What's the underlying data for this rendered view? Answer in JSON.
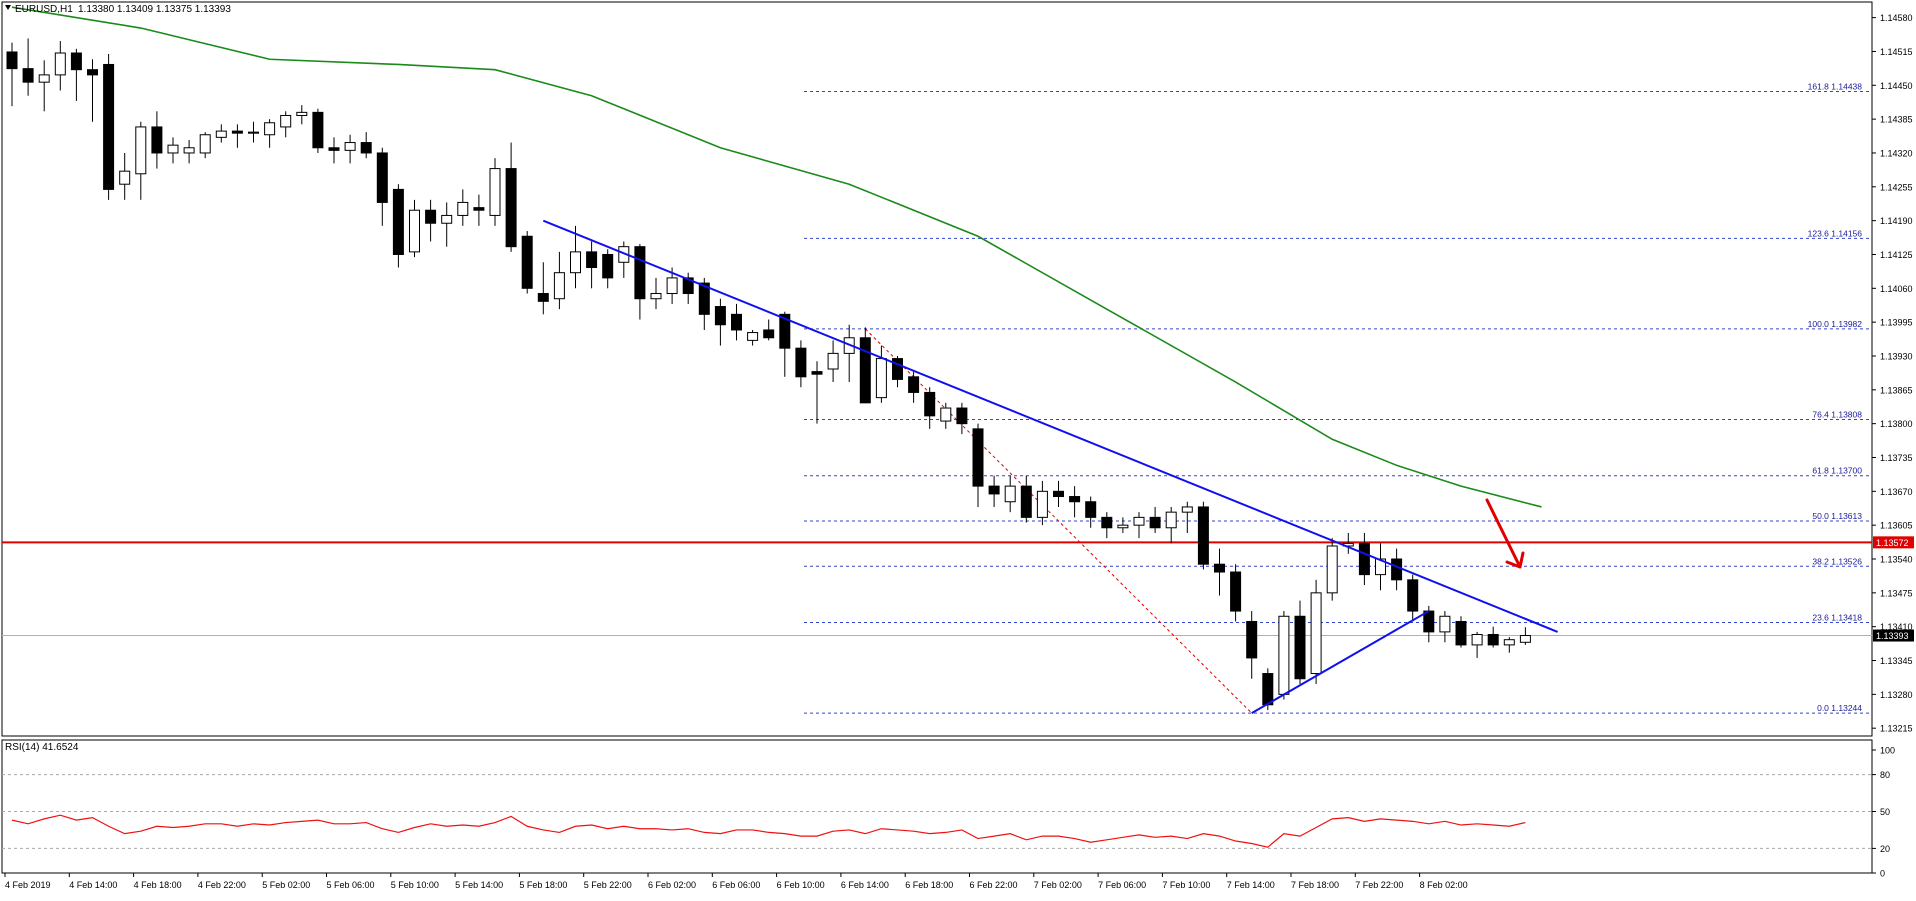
{
  "header": {
    "symbol": "EURUSD,H1",
    "ohlc": "1.13380 1.13409 1.13375 1.13393"
  },
  "rsi_header": "RSI(14) 41.6524",
  "colors": {
    "bull_fill": "#ffffff",
    "bear_fill": "#000000",
    "ma_line": "#1a8a1a",
    "trend_line": "#1010ee",
    "resistance_line": "#e00000",
    "fib_line": "#3344cc",
    "fib_text": "#1a1a99",
    "rsi_line": "#ee1111",
    "arrow": "#e00000"
  },
  "chart_data": [
    {
      "type": "candlestick",
      "title": "EURUSD,H1",
      "ylim": [
        1.132,
        1.1461
      ],
      "price_ticks": [
        "1.14580",
        "1.14515",
        "1.14450",
        "1.14385",
        "1.14320",
        "1.14255",
        "1.14190",
        "1.14125",
        "1.14060",
        "1.13995",
        "1.13930",
        "1.13865",
        "1.13800",
        "1.13735",
        "1.13670",
        "1.13605",
        "1.13540",
        "1.13475",
        "1.13410",
        "1.13345",
        "1.13280",
        "1.13215"
      ],
      "current_price": "1.13393",
      "resistance": {
        "value": 1.13572,
        "label": "1.13572"
      },
      "time_ticks": [
        "4 Feb 2019",
        "4 Feb 14:00",
        "4 Feb 18:00",
        "4 Feb 22:00",
        "5 Feb 02:00",
        "5 Feb 06:00",
        "5 Feb 10:00",
        "5 Feb 14:00",
        "5 Feb 18:00",
        "5 Feb 22:00",
        "6 Feb 02:00",
        "6 Feb 06:00",
        "6 Feb 10:00",
        "6 Feb 14:00",
        "6 Feb 18:00",
        "6 Feb 22:00",
        "7 Feb 02:00",
        "7 Feb 06:00",
        "7 Feb 10:00",
        "7 Feb 14:00",
        "7 Feb 18:00",
        "7 Feb 22:00",
        "8 Feb 02:00"
      ],
      "candles": [
        [
          1.14514,
          1.14532,
          1.1441,
          1.14482
        ],
        [
          1.14482,
          1.1454,
          1.1443,
          1.14456
        ],
        [
          1.14456,
          1.14498,
          1.144,
          1.1447
        ],
        [
          1.1447,
          1.14535,
          1.1444,
          1.14512
        ],
        [
          1.14512,
          1.1452,
          1.1442,
          1.1448
        ],
        [
          1.1448,
          1.145,
          1.1438,
          1.1447
        ],
        [
          1.1449,
          1.1451,
          1.1423,
          1.1425
        ],
        [
          1.1426,
          1.1432,
          1.1423,
          1.14285
        ],
        [
          1.1428,
          1.1438,
          1.1423,
          1.1437
        ],
        [
          1.1437,
          1.144,
          1.1429,
          1.1432
        ],
        [
          1.1432,
          1.1435,
          1.143,
          1.14335
        ],
        [
          1.1432,
          1.14345,
          1.143,
          1.1433
        ],
        [
          1.1432,
          1.1436,
          1.1431,
          1.14355
        ],
        [
          1.1435,
          1.14375,
          1.1434,
          1.14362
        ],
        [
          1.14362,
          1.14375,
          1.1433,
          1.14358
        ],
        [
          1.14358,
          1.1438,
          1.1434,
          1.1436
        ],
        [
          1.14355,
          1.14385,
          1.1433,
          1.14378
        ],
        [
          1.1437,
          1.144,
          1.1435,
          1.14392
        ],
        [
          1.14392,
          1.14412,
          1.14375,
          1.14398
        ],
        [
          1.14398,
          1.14405,
          1.1432,
          1.1433
        ],
        [
          1.1433,
          1.1435,
          1.143,
          1.14325
        ],
        [
          1.14325,
          1.14355,
          1.143,
          1.1434
        ],
        [
          1.1434,
          1.1436,
          1.1431,
          1.1432
        ],
        [
          1.1432,
          1.1433,
          1.1418,
          1.14225
        ],
        [
          1.1425,
          1.1426,
          1.141,
          1.14125
        ],
        [
          1.1413,
          1.1423,
          1.1412,
          1.1421
        ],
        [
          1.1421,
          1.1423,
          1.1415,
          1.14185
        ],
        [
          1.14185,
          1.14225,
          1.1414,
          1.142
        ],
        [
          1.142,
          1.1425,
          1.1418,
          1.14225
        ],
        [
          1.14215,
          1.1424,
          1.1418,
          1.1421
        ],
        [
          1.142,
          1.1431,
          1.1418,
          1.1429
        ],
        [
          1.1429,
          1.1434,
          1.1413,
          1.1414
        ],
        [
          1.1416,
          1.1417,
          1.1405,
          1.1406
        ],
        [
          1.1405,
          1.1411,
          1.1401,
          1.14035
        ],
        [
          1.1404,
          1.1413,
          1.1402,
          1.1409
        ],
        [
          1.1409,
          1.1418,
          1.1406,
          1.1413
        ],
        [
          1.1413,
          1.1415,
          1.1406,
          1.141
        ],
        [
          1.14125,
          1.14135,
          1.1406,
          1.1408
        ],
        [
          1.1411,
          1.1415,
          1.1408,
          1.1414
        ],
        [
          1.1414,
          1.14145,
          1.14,
          1.1404
        ],
        [
          1.1404,
          1.1408,
          1.1402,
          1.1405
        ],
        [
          1.1405,
          1.141,
          1.1403,
          1.1408
        ],
        [
          1.1408,
          1.1409,
          1.1403,
          1.1405
        ],
        [
          1.1407,
          1.1408,
          1.1398,
          1.1401
        ],
        [
          1.14025,
          1.1404,
          1.1395,
          1.1399
        ],
        [
          1.1401,
          1.1403,
          1.1396,
          1.1398
        ],
        [
          1.1396,
          1.1398,
          1.1395,
          1.13975
        ],
        [
          1.1398,
          1.14,
          1.1396,
          1.13965
        ],
        [
          1.1401,
          1.14015,
          1.1389,
          1.13945
        ],
        [
          1.13945,
          1.1396,
          1.1387,
          1.1389
        ],
        [
          1.139,
          1.1392,
          1.138,
          1.13895
        ],
        [
          1.13905,
          1.1396,
          1.1388,
          1.13935
        ],
        [
          1.13935,
          1.1399,
          1.1388,
          1.13965
        ],
        [
          1.13965,
          1.13985,
          1.1385,
          1.1384
        ],
        [
          1.1385,
          1.1395,
          1.1384,
          1.13925
        ],
        [
          1.13925,
          1.1393,
          1.1387,
          1.13885
        ],
        [
          1.1389,
          1.139,
          1.1384,
          1.1386
        ],
        [
          1.1386,
          1.1387,
          1.1379,
          1.13815
        ],
        [
          1.13805,
          1.1384,
          1.1379,
          1.1383
        ],
        [
          1.1383,
          1.1384,
          1.1378,
          1.138
        ],
        [
          1.1379,
          1.138,
          1.1364,
          1.1368
        ],
        [
          1.1368,
          1.137,
          1.1364,
          1.13665
        ],
        [
          1.1365,
          1.137,
          1.1363,
          1.1368
        ],
        [
          1.1368,
          1.137,
          1.1361,
          1.1362
        ],
        [
          1.1362,
          1.1369,
          1.13605,
          1.1367
        ],
        [
          1.1367,
          1.1369,
          1.1364,
          1.1366
        ],
        [
          1.1366,
          1.1368,
          1.1362,
          1.1365
        ],
        [
          1.1365,
          1.1366,
          1.136,
          1.1362
        ],
        [
          1.1362,
          1.1363,
          1.1358,
          1.136
        ],
        [
          1.136,
          1.1362,
          1.1359,
          1.13605
        ],
        [
          1.13605,
          1.1363,
          1.1358,
          1.1362
        ],
        [
          1.1362,
          1.1364,
          1.1359,
          1.136
        ],
        [
          1.136,
          1.1364,
          1.1357,
          1.1363
        ],
        [
          1.1363,
          1.1365,
          1.1359,
          1.1364
        ],
        [
          1.1364,
          1.1365,
          1.1352,
          1.1353
        ],
        [
          1.1353,
          1.1356,
          1.1347,
          1.13515
        ],
        [
          1.13515,
          1.1353,
          1.1342,
          1.1344
        ],
        [
          1.1342,
          1.1344,
          1.1331,
          1.1335
        ],
        [
          1.1332,
          1.1333,
          1.1325,
          1.1326
        ],
        [
          1.1328,
          1.1344,
          1.1327,
          1.1343
        ],
        [
          1.1343,
          1.1346,
          1.133,
          1.1331
        ],
        [
          1.1332,
          1.135,
          1.133,
          1.13475
        ],
        [
          1.13475,
          1.1358,
          1.1346,
          1.13565
        ],
        [
          1.13565,
          1.1359,
          1.1355,
          1.1357
        ],
        [
          1.1357,
          1.1359,
          1.1349,
          1.1351
        ],
        [
          1.1351,
          1.1357,
          1.1348,
          1.1354
        ],
        [
          1.1354,
          1.1356,
          1.1348,
          1.135
        ],
        [
          1.135,
          1.1351,
          1.1342,
          1.1344
        ],
        [
          1.1344,
          1.1345,
          1.1338,
          1.134
        ],
        [
          1.134,
          1.1344,
          1.1338,
          1.1343
        ],
        [
          1.1342,
          1.1343,
          1.1337,
          1.13375
        ],
        [
          1.13375,
          1.134,
          1.1335,
          1.13395
        ],
        [
          1.13395,
          1.1341,
          1.1337,
          1.13375
        ],
        [
          1.13375,
          1.1339,
          1.1336,
          1.13385
        ],
        [
          1.1338,
          1.13409,
          1.13375,
          1.13393
        ]
      ],
      "moving_average": [
        [
          0,
          1.146
        ],
        [
          8,
          1.1456
        ],
        [
          16,
          1.145
        ],
        [
          24,
          1.1449
        ],
        [
          30,
          1.1448
        ],
        [
          36,
          1.1443
        ],
        [
          44,
          1.1433
        ],
        [
          52,
          1.1426
        ],
        [
          60,
          1.1416
        ],
        [
          68,
          1.1402
        ],
        [
          76,
          1.1388
        ],
        [
          82,
          1.1377
        ],
        [
          86,
          1.1372
        ],
        [
          90,
          1.1368
        ],
        [
          95,
          1.1364
        ]
      ],
      "fibonacci": [
        {
          "value": 1.14438,
          "label": "161.8 1.14438"
        },
        {
          "value": 1.14156,
          "label": "123.6 1.14156"
        },
        {
          "value": 1.13982,
          "label": "100.0 1.13982"
        },
        {
          "value": 1.13808,
          "label": "76.4 1.13808"
        },
        {
          "value": 1.137,
          "label": "61.8 1.13700"
        },
        {
          "value": 1.13613,
          "label": "50.0 1.13613"
        },
        {
          "value": 1.13526,
          "label": "38.2 1.13526"
        },
        {
          "value": 1.13418,
          "label": "23.6 1.13418"
        },
        {
          "value": 1.13244,
          "label": "0.0 1.13244"
        }
      ],
      "downtrend_line": [
        [
          33,
          1.1419
        ],
        [
          96,
          1.134
        ]
      ],
      "rising_line": [
        [
          77,
          1.13244
        ],
        [
          88,
          1.1344
        ]
      ],
      "fib_swing": [
        [
          53,
          1.13982
        ],
        [
          77,
          1.13244
        ]
      ]
    },
    {
      "type": "line",
      "title": "RSI(14) 41.6524",
      "ylim": [
        0,
        100
      ],
      "ticks": [
        "100",
        "80",
        "50",
        "20",
        "0"
      ],
      "levels": [
        80,
        50,
        20
      ],
      "values": [
        43,
        40,
        44,
        47,
        43,
        45,
        38,
        32,
        34,
        38,
        37,
        38,
        40,
        40,
        38,
        40,
        39,
        41,
        42,
        43,
        40,
        40,
        41,
        36,
        33,
        37,
        40,
        38,
        39,
        38,
        41,
        46,
        38,
        35,
        33,
        38,
        39,
        36,
        38,
        36,
        36,
        35,
        36,
        33,
        32,
        35,
        35,
        33,
        32,
        30,
        30,
        34,
        35,
        32,
        36,
        35,
        34,
        32,
        33,
        35,
        28,
        30,
        32,
        27,
        30,
        30,
        28,
        25,
        27,
        29,
        31,
        29,
        30,
        28,
        32,
        30,
        26,
        24,
        21,
        32,
        30,
        37,
        44,
        45,
        42,
        44,
        43,
        42,
        40,
        42,
        39,
        40,
        39,
        38,
        41
      ]
    }
  ]
}
